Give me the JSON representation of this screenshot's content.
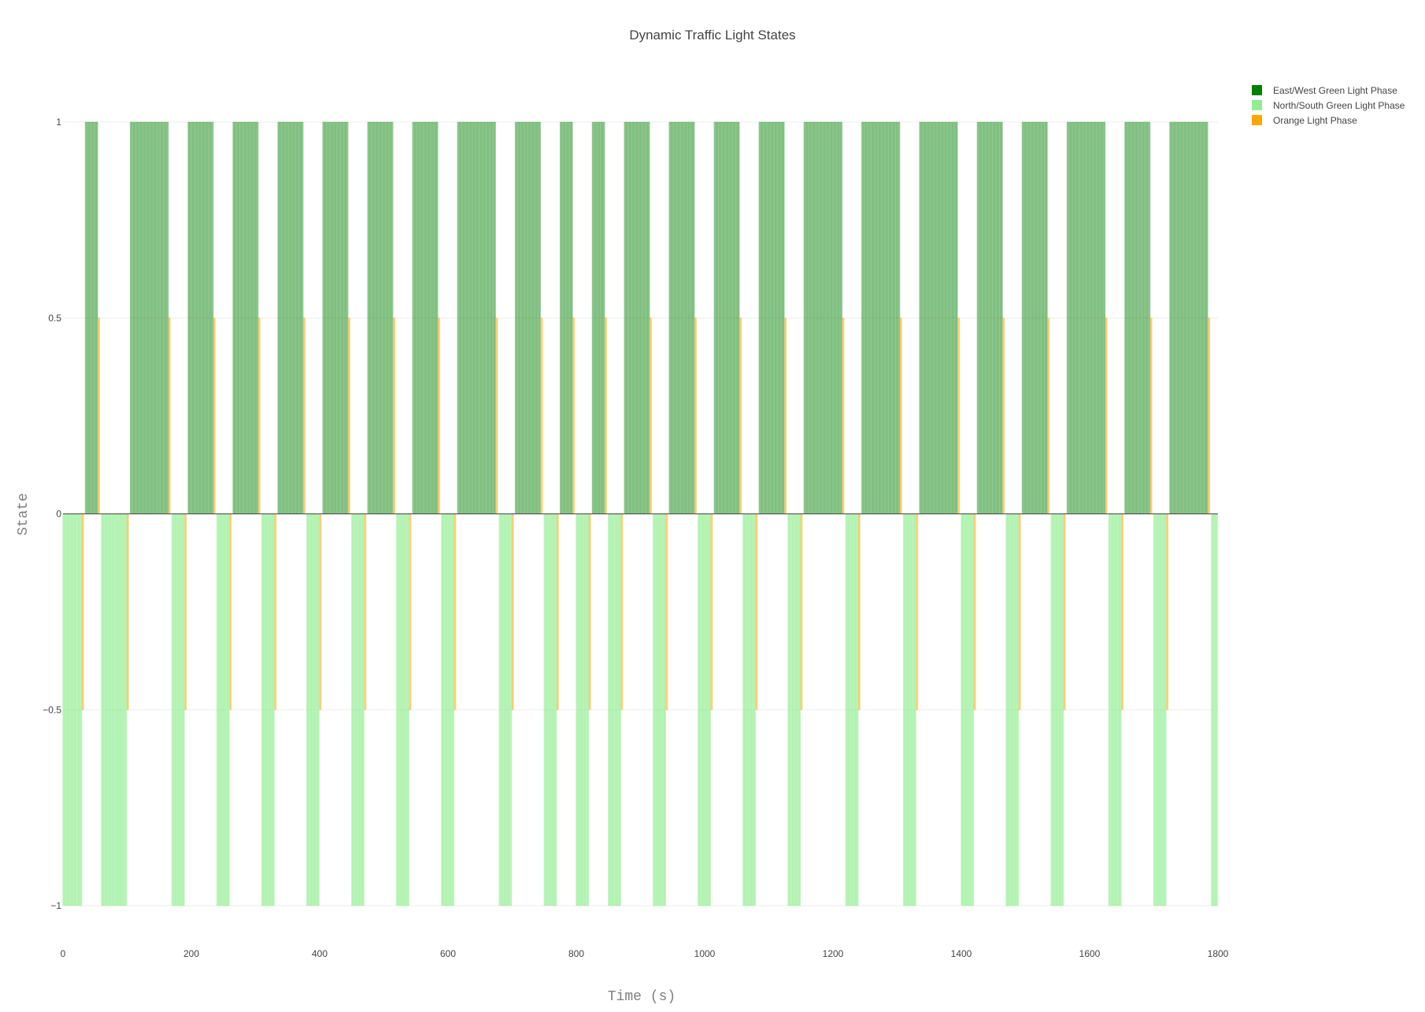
{
  "chart_data": {
    "type": "bar",
    "title": "Dynamic Traffic Light States",
    "xlabel": "Time (s)",
    "ylabel": "State",
    "xlim": [
      0,
      1800
    ],
    "ylim": [
      -1,
      1
    ],
    "xticks": [
      {
        "value": 0,
        "label": "0"
      },
      {
        "value": 200,
        "label": "200"
      },
      {
        "value": 400,
        "label": "400"
      },
      {
        "value": 600,
        "label": "600"
      },
      {
        "value": 800,
        "label": "800"
      },
      {
        "value": 1000,
        "label": "1000"
      },
      {
        "value": 1200,
        "label": "1200"
      },
      {
        "value": 1400,
        "label": "1400"
      },
      {
        "value": 1600,
        "label": "1600"
      },
      {
        "value": 1800,
        "label": "1800"
      }
    ],
    "yticks": [
      {
        "value": 1,
        "label": "1"
      },
      {
        "value": 0.5,
        "label": "0.5"
      },
      {
        "value": 0,
        "label": "0"
      },
      {
        "value": -0.5,
        "label": "−0.5"
      },
      {
        "value": -1,
        "label": "−1"
      }
    ],
    "legend_position": "top-right",
    "series": [
      {
        "name": "East/West Green Light Phase",
        "color": "#008000",
        "value": 1,
        "intervals": [
          [
            35,
            54
          ],
          [
            105,
            164
          ],
          [
            195,
            234
          ],
          [
            265,
            304
          ],
          [
            335,
            374
          ],
          [
            405,
            444
          ],
          [
            475,
            514
          ],
          [
            545,
            584
          ],
          [
            615,
            674
          ],
          [
            705,
            744
          ],
          [
            775,
            794
          ],
          [
            825,
            844
          ],
          [
            875,
            914
          ],
          [
            945,
            984
          ],
          [
            1015,
            1054
          ],
          [
            1085,
            1124
          ],
          [
            1155,
            1214
          ],
          [
            1245,
            1304
          ],
          [
            1335,
            1394
          ],
          [
            1425,
            1464
          ],
          [
            1495,
            1534
          ],
          [
            1565,
            1624
          ],
          [
            1655,
            1694
          ],
          [
            1725,
            1784
          ]
        ]
      },
      {
        "name": "North/South Green Light Phase",
        "color": "#90EE90",
        "value": -1,
        "intervals": [
          [
            0,
            29
          ],
          [
            60,
            99
          ],
          [
            170,
            189
          ],
          [
            240,
            259
          ],
          [
            310,
            329
          ],
          [
            380,
            399
          ],
          [
            450,
            469
          ],
          [
            520,
            539
          ],
          [
            590,
            609
          ],
          [
            680,
            699
          ],
          [
            750,
            769
          ],
          [
            800,
            819
          ],
          [
            850,
            869
          ],
          [
            920,
            939
          ],
          [
            990,
            1009
          ],
          [
            1060,
            1079
          ],
          [
            1130,
            1149
          ],
          [
            1220,
            1239
          ],
          [
            1310,
            1329
          ],
          [
            1400,
            1419
          ],
          [
            1470,
            1489
          ],
          [
            1540,
            1559
          ],
          [
            1630,
            1649
          ],
          [
            1700,
            1719
          ],
          [
            1790,
            1799
          ]
        ]
      },
      {
        "name": "Orange Light Phase",
        "color": "#FFA500",
        "points": [
          [
            30,
            -0.5
          ],
          [
            31,
            -0.5
          ],
          [
            32,
            -0.5
          ],
          [
            55,
            0.5
          ],
          [
            56,
            0.5
          ],
          [
            57,
            0.5
          ],
          [
            100,
            -0.5
          ],
          [
            101,
            -0.5
          ],
          [
            102,
            -0.5
          ],
          [
            165,
            0.5
          ],
          [
            166,
            0.5
          ],
          [
            167,
            0.5
          ],
          [
            190,
            -0.5
          ],
          [
            191,
            -0.5
          ],
          [
            192,
            -0.5
          ],
          [
            235,
            0.5
          ],
          [
            236,
            0.5
          ],
          [
            237,
            0.5
          ],
          [
            260,
            -0.5
          ],
          [
            261,
            -0.5
          ],
          [
            262,
            -0.5
          ],
          [
            305,
            0.5
          ],
          [
            306,
            0.5
          ],
          [
            307,
            0.5
          ],
          [
            330,
            -0.5
          ],
          [
            331,
            -0.5
          ],
          [
            332,
            -0.5
          ],
          [
            375,
            0.5
          ],
          [
            376,
            0.5
          ],
          [
            377,
            0.5
          ],
          [
            400,
            -0.5
          ],
          [
            401,
            -0.5
          ],
          [
            402,
            -0.5
          ],
          [
            445,
            0.5
          ],
          [
            446,
            0.5
          ],
          [
            447,
            0.5
          ],
          [
            470,
            -0.5
          ],
          [
            471,
            -0.5
          ],
          [
            472,
            -0.5
          ],
          [
            515,
            0.5
          ],
          [
            516,
            0.5
          ],
          [
            517,
            0.5
          ],
          [
            540,
            -0.5
          ],
          [
            541,
            -0.5
          ],
          [
            542,
            -0.5
          ],
          [
            585,
            0.5
          ],
          [
            586,
            0.5
          ],
          [
            587,
            0.5
          ],
          [
            610,
            -0.5
          ],
          [
            611,
            -0.5
          ],
          [
            612,
            -0.5
          ],
          [
            675,
            0.5
          ],
          [
            676,
            0.5
          ],
          [
            677,
            0.5
          ],
          [
            700,
            -0.5
          ],
          [
            701,
            -0.5
          ],
          [
            702,
            -0.5
          ],
          [
            745,
            0.5
          ],
          [
            746,
            0.5
          ],
          [
            747,
            0.5
          ],
          [
            770,
            -0.5
          ],
          [
            771,
            -0.5
          ],
          [
            772,
            -0.5
          ],
          [
            795,
            0.5
          ],
          [
            796,
            0.5
          ],
          [
            797,
            0.5
          ],
          [
            820,
            -0.5
          ],
          [
            821,
            -0.5
          ],
          [
            822,
            -0.5
          ],
          [
            845,
            0.5
          ],
          [
            846,
            0.5
          ],
          [
            847,
            0.5
          ],
          [
            870,
            -0.5
          ],
          [
            871,
            -0.5
          ],
          [
            872,
            -0.5
          ],
          [
            915,
            0.5
          ],
          [
            916,
            0.5
          ],
          [
            917,
            0.5
          ],
          [
            940,
            -0.5
          ],
          [
            941,
            -0.5
          ],
          [
            942,
            -0.5
          ],
          [
            985,
            0.5
          ],
          [
            986,
            0.5
          ],
          [
            987,
            0.5
          ],
          [
            1010,
            -0.5
          ],
          [
            1011,
            -0.5
          ],
          [
            1012,
            -0.5
          ],
          [
            1055,
            0.5
          ],
          [
            1056,
            0.5
          ],
          [
            1057,
            0.5
          ],
          [
            1080,
            -0.5
          ],
          [
            1081,
            -0.5
          ],
          [
            1082,
            -0.5
          ],
          [
            1125,
            0.5
          ],
          [
            1126,
            0.5
          ],
          [
            1127,
            0.5
          ],
          [
            1150,
            -0.5
          ],
          [
            1151,
            -0.5
          ],
          [
            1152,
            -0.5
          ],
          [
            1215,
            0.5
          ],
          [
            1216,
            0.5
          ],
          [
            1217,
            0.5
          ],
          [
            1240,
            -0.5
          ],
          [
            1241,
            -0.5
          ],
          [
            1242,
            -0.5
          ],
          [
            1305,
            0.5
          ],
          [
            1306,
            0.5
          ],
          [
            1307,
            0.5
          ],
          [
            1330,
            -0.5
          ],
          [
            1331,
            -0.5
          ],
          [
            1332,
            -0.5
          ],
          [
            1395,
            0.5
          ],
          [
            1396,
            0.5
          ],
          [
            1397,
            0.5
          ],
          [
            1420,
            -0.5
          ],
          [
            1421,
            -0.5
          ],
          [
            1422,
            -0.5
          ],
          [
            1465,
            0.5
          ],
          [
            1466,
            0.5
          ],
          [
            1467,
            0.5
          ],
          [
            1490,
            -0.5
          ],
          [
            1491,
            -0.5
          ],
          [
            1492,
            -0.5
          ],
          [
            1535,
            0.5
          ],
          [
            1536,
            0.5
          ],
          [
            1537,
            0.5
          ],
          [
            1560,
            -0.5
          ],
          [
            1561,
            -0.5
          ],
          [
            1562,
            -0.5
          ],
          [
            1625,
            0.5
          ],
          [
            1626,
            0.5
          ],
          [
            1627,
            0.5
          ],
          [
            1650,
            -0.5
          ],
          [
            1651,
            -0.5
          ],
          [
            1652,
            -0.5
          ],
          [
            1695,
            0.5
          ],
          [
            1696,
            0.5
          ],
          [
            1697,
            0.5
          ],
          [
            1720,
            -0.5
          ],
          [
            1721,
            -0.5
          ],
          [
            1722,
            -0.5
          ],
          [
            1785,
            0.5
          ],
          [
            1786,
            0.5
          ],
          [
            1787,
            0.5
          ]
        ]
      }
    ]
  }
}
